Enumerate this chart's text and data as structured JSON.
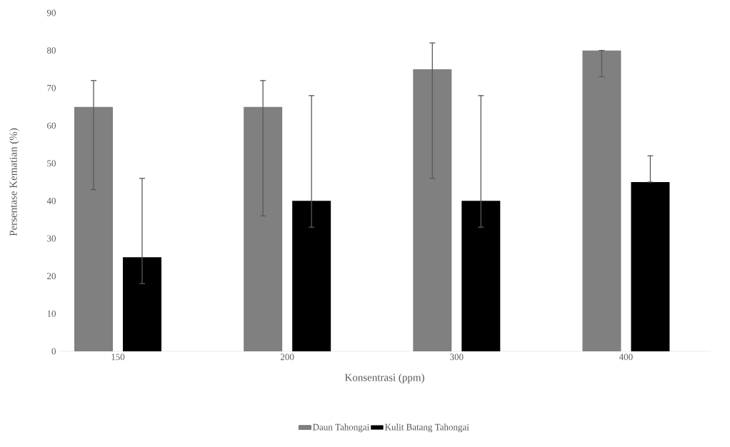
{
  "chart_data": {
    "type": "bar",
    "xlabel": "Konsentrasi (ppm)",
    "ylabel": "Persentase Kematian (%)",
    "categories": [
      "150",
      "200",
      "300",
      "400"
    ],
    "series": [
      {
        "name": "Daun Tahongai",
        "color": "#808080",
        "values": [
          65,
          65,
          75,
          80
        ],
        "errors": [
          [
            43,
            72
          ],
          [
            36,
            72
          ],
          [
            46,
            82
          ],
          [
            73,
            80
          ]
        ]
      },
      {
        "name": "Kulit Batang Tahongai",
        "color": "#000000",
        "values": [
          25,
          40,
          40,
          45
        ],
        "errors": [
          [
            18,
            46
          ],
          [
            33,
            68
          ],
          [
            33,
            68
          ],
          [
            45,
            52
          ]
        ]
      }
    ],
    "ylim": [
      0,
      90
    ],
    "yticks": [
      0,
      10,
      20,
      30,
      40,
      50,
      60,
      70,
      80,
      90
    ],
    "legend": "bottom"
  }
}
